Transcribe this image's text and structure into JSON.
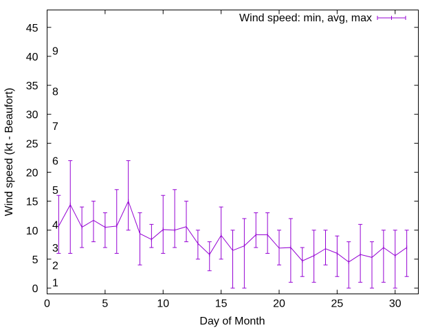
{
  "chart_data": {
    "type": "line",
    "xlabel": "Day of Month",
    "ylabel": "Wind speed (kt - Beaufort)",
    "xlim": [
      0,
      32
    ],
    "ylim": [
      -1,
      48
    ],
    "xticks": [
      0,
      5,
      10,
      15,
      20,
      25,
      30
    ],
    "yticks": [
      0,
      5,
      10,
      15,
      20,
      25,
      30,
      35,
      40,
      45
    ],
    "grid": false,
    "legend_position": "top-right",
    "series": [
      {
        "name": "Wind speed: min, avg, max",
        "color": "#9400d3",
        "x": [
          1,
          2,
          3,
          4,
          5,
          6,
          7,
          8,
          9,
          10,
          11,
          12,
          13,
          14,
          15,
          16,
          17,
          18,
          19,
          20,
          21,
          22,
          23,
          24,
          25,
          26,
          27,
          28,
          29,
          30,
          31
        ],
        "min": [
          6,
          6,
          7,
          8,
          7,
          6,
          10,
          4,
          7,
          6,
          7,
          8,
          5,
          3,
          5,
          0,
          0,
          7,
          6,
          4,
          1,
          2,
          1,
          4,
          2,
          0,
          1,
          0,
          1,
          0,
          2
        ],
        "avg": [
          10.7,
          14.4,
          10.5,
          11.7,
          10.5,
          10.7,
          15.0,
          9.4,
          8.4,
          10.1,
          10.0,
          10.6,
          7.7,
          5.8,
          9.1,
          6.5,
          7.3,
          9.2,
          9.2,
          6.9,
          7.0,
          4.7,
          5.6,
          6.8,
          6.0,
          4.5,
          5.8,
          5.3,
          7.0,
          5.6,
          7.0
        ],
        "max": [
          16,
          22,
          14,
          15,
          13,
          17,
          22,
          13,
          11,
          16,
          17,
          15,
          10,
          8,
          14,
          10,
          12,
          13,
          13,
          10,
          12,
          7,
          10,
          10,
          9,
          8,
          11,
          8,
          10,
          10,
          10
        ]
      }
    ],
    "beaufort_labels": [
      {
        "label": "1",
        "value": 1
      },
      {
        "label": "2",
        "value": 4
      },
      {
        "label": "3",
        "value": 7
      },
      {
        "label": "4",
        "value": 11
      },
      {
        "label": "5",
        "value": 17
      },
      {
        "label": "6",
        "value": 22
      },
      {
        "label": "7",
        "value": 28
      },
      {
        "label": "8",
        "value": 34
      },
      {
        "label": "9",
        "value": 41
      }
    ]
  }
}
